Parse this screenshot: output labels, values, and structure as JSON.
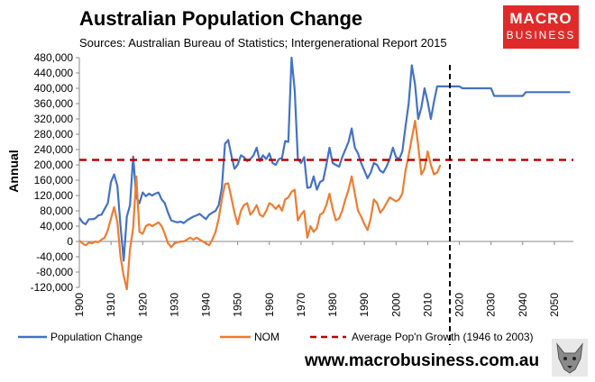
{
  "header": {
    "title": "Australian Population Change",
    "subtitle": "Sources: Australian Bureau of Statistics; Intergenerational Report 2015"
  },
  "logo": {
    "line1": "MACRO",
    "line2": "BUSINESS",
    "color": "#e02a2a"
  },
  "footer": {
    "website": "www.macrobusiness.com.au",
    "wolf_icon": "wolf-icon"
  },
  "chart_data": {
    "type": "line",
    "ylabel": "Annual",
    "ylim": [
      -120000,
      480000
    ],
    "yticks": [
      "480,000",
      "440,000",
      "400,000",
      "360,000",
      "320,000",
      "280,000",
      "240,000",
      "200,000",
      "160,000",
      "120,000",
      "80,000",
      "40,000",
      "0",
      "-40,000",
      "-80,000",
      "-120,000"
    ],
    "ytick_values": [
      480000,
      440000,
      400000,
      360000,
      320000,
      280000,
      240000,
      200000,
      160000,
      120000,
      80000,
      40000,
      0,
      -40000,
      -80000,
      -120000
    ],
    "xlim": [
      1900,
      2056
    ],
    "xticks": [
      "1900",
      "1910",
      "1920",
      "1930",
      "1940",
      "1950",
      "1960",
      "1970",
      "1980",
      "1990",
      "2000",
      "2010",
      "2020",
      "2030",
      "2040",
      "2050"
    ],
    "xtick_values": [
      1900,
      1910,
      1920,
      1930,
      1940,
      1950,
      1960,
      1970,
      1980,
      1990,
      2000,
      2010,
      2020,
      2030,
      2040,
      2050
    ],
    "legend_position": "bottom",
    "series": [
      {
        "name": "Population Change",
        "color": "#4472c4",
        "points": [
          [
            1900,
            62000
          ],
          [
            1901,
            50000
          ],
          [
            1902,
            45000
          ],
          [
            1903,
            58000
          ],
          [
            1904,
            58000
          ],
          [
            1905,
            60000
          ],
          [
            1906,
            68000
          ],
          [
            1907,
            70000
          ],
          [
            1908,
            85000
          ],
          [
            1909,
            100000
          ],
          [
            1910,
            155000
          ],
          [
            1911,
            175000
          ],
          [
            1912,
            145000
          ],
          [
            1913,
            40000
          ],
          [
            1914,
            -50000
          ],
          [
            1915,
            65000
          ],
          [
            1916,
            95000
          ],
          [
            1917,
            222000
          ],
          [
            1918,
            115000
          ],
          [
            1919,
            100000
          ],
          [
            1920,
            128000
          ],
          [
            1921,
            118000
          ],
          [
            1922,
            125000
          ],
          [
            1923,
            120000
          ],
          [
            1924,
            125000
          ],
          [
            1925,
            128000
          ],
          [
            1926,
            110000
          ],
          [
            1927,
            100000
          ],
          [
            1928,
            75000
          ],
          [
            1929,
            55000
          ],
          [
            1930,
            52000
          ],
          [
            1931,
            50000
          ],
          [
            1932,
            52000
          ],
          [
            1933,
            48000
          ],
          [
            1934,
            55000
          ],
          [
            1935,
            60000
          ],
          [
            1936,
            65000
          ],
          [
            1937,
            68000
          ],
          [
            1938,
            72000
          ],
          [
            1939,
            65000
          ],
          [
            1940,
            58000
          ],
          [
            1941,
            70000
          ],
          [
            1942,
            75000
          ],
          [
            1943,
            80000
          ],
          [
            1944,
            95000
          ],
          [
            1945,
            140000
          ],
          [
            1946,
            255000
          ],
          [
            1947,
            265000
          ],
          [
            1948,
            225000
          ],
          [
            1949,
            190000
          ],
          [
            1950,
            200000
          ],
          [
            1951,
            225000
          ],
          [
            1952,
            220000
          ],
          [
            1953,
            210000
          ],
          [
            1954,
            215000
          ],
          [
            1955,
            225000
          ],
          [
            1956,
            245000
          ],
          [
            1957,
            210000
          ],
          [
            1958,
            225000
          ],
          [
            1959,
            215000
          ],
          [
            1960,
            230000
          ],
          [
            1961,
            205000
          ],
          [
            1962,
            200000
          ],
          [
            1963,
            215000
          ],
          [
            1964,
            218000
          ],
          [
            1965,
            262000
          ],
          [
            1966,
            260000
          ],
          [
            1967,
            480000
          ],
          [
            1968,
            395000
          ],
          [
            1969,
            215000
          ],
          [
            1970,
            205000
          ],
          [
            1971,
            220000
          ],
          [
            1972,
            140000
          ],
          [
            1973,
            142000
          ],
          [
            1974,
            170000
          ],
          [
            1975,
            135000
          ],
          [
            1976,
            155000
          ],
          [
            1977,
            160000
          ],
          [
            1978,
            200000
          ],
          [
            1979,
            245000
          ],
          [
            1980,
            205000
          ],
          [
            1981,
            200000
          ],
          [
            1982,
            195000
          ],
          [
            1983,
            220000
          ],
          [
            1984,
            240000
          ],
          [
            1985,
            260000
          ],
          [
            1986,
            295000
          ],
          [
            1987,
            245000
          ],
          [
            1988,
            230000
          ],
          [
            1989,
            205000
          ],
          [
            1990,
            185000
          ],
          [
            1991,
            165000
          ],
          [
            1992,
            180000
          ],
          [
            1993,
            205000
          ],
          [
            1994,
            200000
          ],
          [
            1995,
            185000
          ],
          [
            1996,
            180000
          ],
          [
            1997,
            195000
          ],
          [
            1998,
            215000
          ],
          [
            1999,
            245000
          ],
          [
            2000,
            220000
          ],
          [
            2001,
            215000
          ],
          [
            2002,
            235000
          ],
          [
            2003,
            300000
          ],
          [
            2004,
            360000
          ],
          [
            2005,
            460000
          ],
          [
            2006,
            410000
          ],
          [
            2007,
            320000
          ],
          [
            2008,
            350000
          ],
          [
            2009,
            400000
          ],
          [
            2010,
            365000
          ],
          [
            2011,
            320000
          ],
          [
            2012,
            365000
          ],
          [
            2013,
            405000
          ],
          [
            2014,
            405000
          ],
          [
            2015,
            405000
          ],
          [
            2016,
            405000
          ],
          [
            2017,
            405000
          ],
          [
            2018,
            405000
          ],
          [
            2019,
            405000
          ],
          [
            2020,
            405000
          ],
          [
            2021,
            400000
          ],
          [
            2022,
            400000
          ],
          [
            2023,
            400000
          ],
          [
            2024,
            400000
          ],
          [
            2025,
            400000
          ],
          [
            2026,
            400000
          ],
          [
            2027,
            400000
          ],
          [
            2028,
            400000
          ],
          [
            2029,
            400000
          ],
          [
            2030,
            400000
          ],
          [
            2031,
            380000
          ],
          [
            2032,
            380000
          ],
          [
            2033,
            380000
          ],
          [
            2034,
            380000
          ],
          [
            2035,
            380000
          ],
          [
            2036,
            380000
          ],
          [
            2037,
            380000
          ],
          [
            2038,
            380000
          ],
          [
            2039,
            380000
          ],
          [
            2040,
            380000
          ],
          [
            2041,
            390000
          ],
          [
            2042,
            390000
          ],
          [
            2043,
            390000
          ],
          [
            2044,
            390000
          ],
          [
            2045,
            390000
          ],
          [
            2046,
            390000
          ],
          [
            2047,
            390000
          ],
          [
            2048,
            390000
          ],
          [
            2049,
            390000
          ],
          [
            2050,
            390000
          ],
          [
            2051,
            390000
          ],
          [
            2052,
            390000
          ],
          [
            2053,
            390000
          ],
          [
            2054,
            390000
          ],
          [
            2055,
            390000
          ]
        ]
      },
      {
        "name": "NOM",
        "color": "#ed7d31",
        "points": [
          [
            1900,
            2000
          ],
          [
            1901,
            -5000
          ],
          [
            1902,
            -10000
          ],
          [
            1903,
            -3000
          ],
          [
            1904,
            -5000
          ],
          [
            1905,
            0
          ],
          [
            1906,
            -2000
          ],
          [
            1907,
            5000
          ],
          [
            1908,
            10000
          ],
          [
            1909,
            30000
          ],
          [
            1910,
            60000
          ],
          [
            1911,
            90000
          ],
          [
            1912,
            50000
          ],
          [
            1913,
            -40000
          ],
          [
            1914,
            -90000
          ],
          [
            1915,
            -125000
          ],
          [
            1916,
            -20000
          ],
          [
            1917,
            35000
          ],
          [
            1918,
            170000
          ],
          [
            1919,
            25000
          ],
          [
            1920,
            20000
          ],
          [
            1921,
            40000
          ],
          [
            1922,
            45000
          ],
          [
            1923,
            40000
          ],
          [
            1924,
            45000
          ],
          [
            1925,
            50000
          ],
          [
            1926,
            40000
          ],
          [
            1927,
            20000
          ],
          [
            1928,
            -5000
          ],
          [
            1929,
            -15000
          ],
          [
            1930,
            -5000
          ],
          [
            1931,
            -2000
          ],
          [
            1932,
            0
          ],
          [
            1933,
            0
          ],
          [
            1934,
            5000
          ],
          [
            1935,
            10000
          ],
          [
            1936,
            5000
          ],
          [
            1937,
            10000
          ],
          [
            1938,
            5000
          ],
          [
            1939,
            0
          ],
          [
            1940,
            -5000
          ],
          [
            1941,
            -10000
          ],
          [
            1942,
            5000
          ],
          [
            1943,
            25000
          ],
          [
            1944,
            60000
          ],
          [
            1945,
            110000
          ],
          [
            1946,
            150000
          ],
          [
            1947,
            152000
          ],
          [
            1948,
            115000
          ],
          [
            1949,
            75000
          ],
          [
            1950,
            45000
          ],
          [
            1951,
            80000
          ],
          [
            1952,
            95000
          ],
          [
            1953,
            100000
          ],
          [
            1954,
            70000
          ],
          [
            1955,
            80000
          ],
          [
            1956,
            95000
          ],
          [
            1957,
            70000
          ],
          [
            1958,
            65000
          ],
          [
            1959,
            80000
          ],
          [
            1960,
            100000
          ],
          [
            1961,
            95000
          ],
          [
            1962,
            85000
          ],
          [
            1963,
            95000
          ],
          [
            1964,
            80000
          ],
          [
            1965,
            110000
          ],
          [
            1966,
            115000
          ],
          [
            1967,
            130000
          ],
          [
            1968,
            135000
          ],
          [
            1969,
            55000
          ],
          [
            1970,
            70000
          ],
          [
            1971,
            80000
          ],
          [
            1972,
            10000
          ],
          [
            1973,
            40000
          ],
          [
            1974,
            25000
          ],
          [
            1975,
            35000
          ],
          [
            1976,
            70000
          ],
          [
            1977,
            75000
          ],
          [
            1978,
            95000
          ],
          [
            1979,
            125000
          ],
          [
            1980,
            85000
          ],
          [
            1981,
            55000
          ],
          [
            1982,
            60000
          ],
          [
            1983,
            80000
          ],
          [
            1984,
            110000
          ],
          [
            1985,
            135000
          ],
          [
            1986,
            170000
          ],
          [
            1987,
            125000
          ],
          [
            1988,
            80000
          ],
          [
            1989,
            65000
          ],
          [
            1990,
            45000
          ],
          [
            1991,
            30000
          ],
          [
            1992,
            60000
          ],
          [
            1993,
            110000
          ],
          [
            1994,
            100000
          ],
          [
            1995,
            75000
          ],
          [
            1996,
            85000
          ],
          [
            1997,
            100000
          ],
          [
            1998,
            115000
          ],
          [
            1999,
            110000
          ],
          [
            2000,
            105000
          ],
          [
            2001,
            110000
          ],
          [
            2002,
            125000
          ],
          [
            2003,
            185000
          ],
          [
            2004,
            225000
          ],
          [
            2005,
            270000
          ],
          [
            2006,
            315000
          ],
          [
            2007,
            250000
          ],
          [
            2008,
            175000
          ],
          [
            2009,
            190000
          ],
          [
            2010,
            235000
          ],
          [
            2011,
            200000
          ],
          [
            2012,
            175000
          ],
          [
            2013,
            180000
          ],
          [
            2014,
            200000
          ]
        ]
      },
      {
        "name": "Average Pop'n Growth (1946 to 2003)",
        "color": "#c00000",
        "dashed": true,
        "value": 213000
      }
    ],
    "vertical_marker": {
      "x": 2017,
      "color": "#000000",
      "dashed": true
    }
  }
}
